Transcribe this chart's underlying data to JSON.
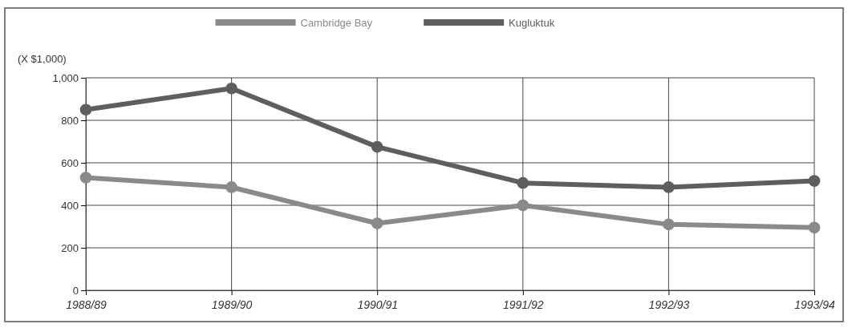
{
  "chart_data": {
    "type": "line",
    "ylabel": "(X $1,000)",
    "categories": [
      "1988/89",
      "1989/90",
      "1990/91",
      "1991/92",
      "1992/93",
      "1993/94"
    ],
    "series": [
      {
        "name": "Cambridge Bay",
        "color": "#8a8a8a",
        "values": [
          530,
          485,
          315,
          400,
          310,
          295
        ]
      },
      {
        "name": "Kugluktuk",
        "color": "#5e5e5e",
        "values": [
          850,
          950,
          675,
          505,
          485,
          515
        ]
      }
    ],
    "ylim": [
      0,
      1000
    ],
    "yticks": [
      0,
      200,
      400,
      600,
      800,
      {
        "value": 1000,
        "label": "1,000"
      }
    ],
    "grid": true,
    "legend": "top",
    "marker": "circle",
    "line_style": "solid"
  }
}
